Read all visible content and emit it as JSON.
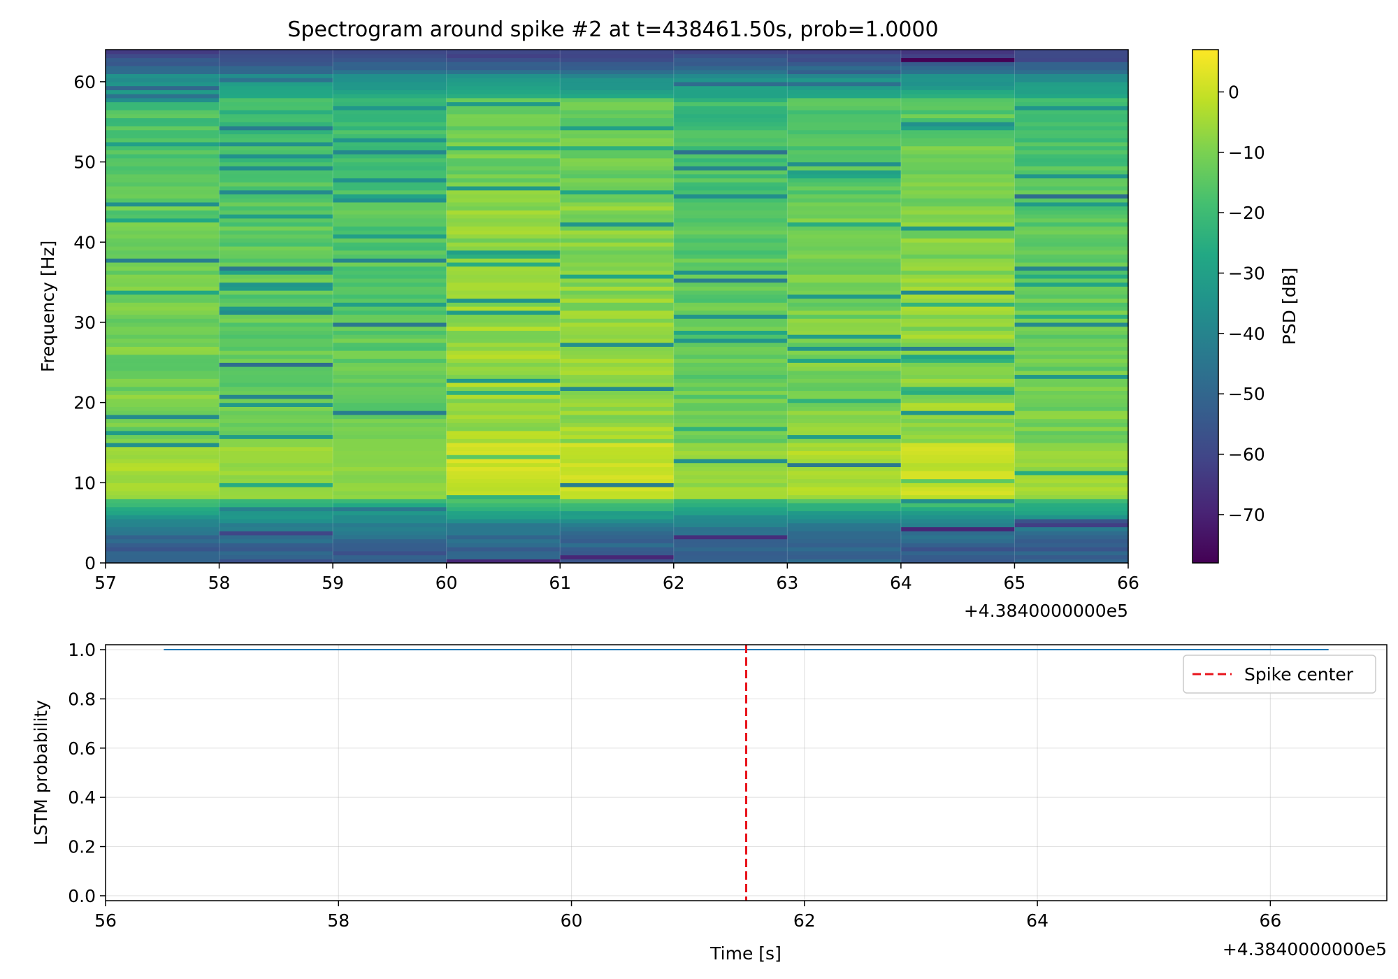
{
  "chart_data": [
    {
      "type": "heatmap",
      "title": "Spectrogram around spike #2 at t=438461.50s, prob=1.0000",
      "xlabel": "",
      "ylabel": "Frequency [Hz]",
      "x_offset_label": "+4.3840000000e5",
      "xlim": [
        57,
        66
      ],
      "ylim": [
        0,
        64
      ],
      "x_ticks": [
        57,
        58,
        59,
        60,
        61,
        62,
        63,
        64,
        65,
        66
      ],
      "y_ticks": [
        0,
        10,
        20,
        30,
        40,
        50,
        60
      ],
      "time_bins": [
        57,
        58,
        59,
        60,
        61,
        62,
        63,
        64,
        65,
        66
      ],
      "freq_bin_hz": 0.5,
      "colorbar": {
        "label": "PSD [dB]",
        "range": [
          -78,
          7
        ],
        "ticks": [
          0,
          -10,
          -20,
          -30,
          -40,
          -50,
          -60,
          -70
        ],
        "colormap": "viridis"
      },
      "column_mean_db": [
        -13,
        -15,
        -16,
        -8,
        -9,
        -15,
        -12,
        -9,
        -14
      ],
      "dips": [
        [
          0,
          37.5,
          -42
        ],
        [
          0,
          18,
          -38
        ],
        [
          0,
          14.5,
          -36
        ],
        [
          0,
          52,
          -30
        ],
        [
          1,
          24.5,
          -48
        ],
        [
          1,
          36.5,
          -44
        ],
        [
          1,
          20.5,
          -40
        ],
        [
          1,
          46,
          -38
        ],
        [
          1,
          52,
          -36
        ],
        [
          1,
          60,
          -46
        ],
        [
          2,
          29.5,
          -44
        ],
        [
          2,
          37.5,
          -40
        ],
        [
          2,
          18.5,
          -42
        ],
        [
          2,
          52.5,
          -34
        ],
        [
          3,
          22.5,
          -32
        ],
        [
          3,
          32.5,
          -34
        ],
        [
          3,
          38.5,
          -30
        ],
        [
          3,
          57,
          -32
        ],
        [
          4,
          9.5,
          -42
        ],
        [
          4,
          21.5,
          -38
        ],
        [
          4,
          27,
          -36
        ],
        [
          4,
          42,
          -34
        ],
        [
          4,
          54,
          -30
        ],
        [
          5,
          35,
          -42
        ],
        [
          5,
          51,
          -46
        ],
        [
          5,
          49,
          -40
        ],
        [
          5,
          12.5,
          -36
        ],
        [
          5,
          27.5,
          -34
        ],
        [
          6,
          61,
          -52
        ],
        [
          6,
          12,
          -44
        ],
        [
          6,
          49.5,
          -36
        ],
        [
          6,
          33,
          -32
        ],
        [
          7,
          26.5,
          -42
        ],
        [
          7,
          33.5,
          -38
        ],
        [
          7,
          54.5,
          -36
        ],
        [
          7,
          18.5,
          -34
        ],
        [
          7,
          7.5,
          -36
        ],
        [
          8,
          45.5,
          -48
        ],
        [
          8,
          36.5,
          -40
        ],
        [
          8,
          29.5,
          -38
        ],
        [
          8,
          48,
          -34
        ],
        [
          8,
          62.5,
          -60
        ]
      ]
    },
    {
      "type": "line",
      "title": "",
      "xlabel": "Time [s]",
      "ylabel": "LSTM probability",
      "x_offset_label": "+4.3840000000e5",
      "xlim": [
        56,
        67
      ],
      "ylim": [
        -0.02,
        1.02
      ],
      "x_ticks": [
        56,
        58,
        60,
        62,
        64,
        66
      ],
      "y_ticks": [
        0.0,
        0.2,
        0.4,
        0.6,
        0.8,
        1.0
      ],
      "y_tick_labels": [
        "0.0",
        "0.2",
        "0.4",
        "0.6",
        "0.8",
        "1.0"
      ],
      "grid": true,
      "series": [
        {
          "name": "LSTM probability",
          "color": "#1f77b4",
          "x": [
            56.5,
            66.5
          ],
          "y": [
            1.0,
            1.0
          ]
        }
      ],
      "vline": {
        "name": "Spike center",
        "x": 61.5,
        "color": "#e8141c",
        "style": "dashed"
      },
      "legend": {
        "position": "top-right",
        "entries": [
          "Spike center"
        ]
      }
    }
  ]
}
